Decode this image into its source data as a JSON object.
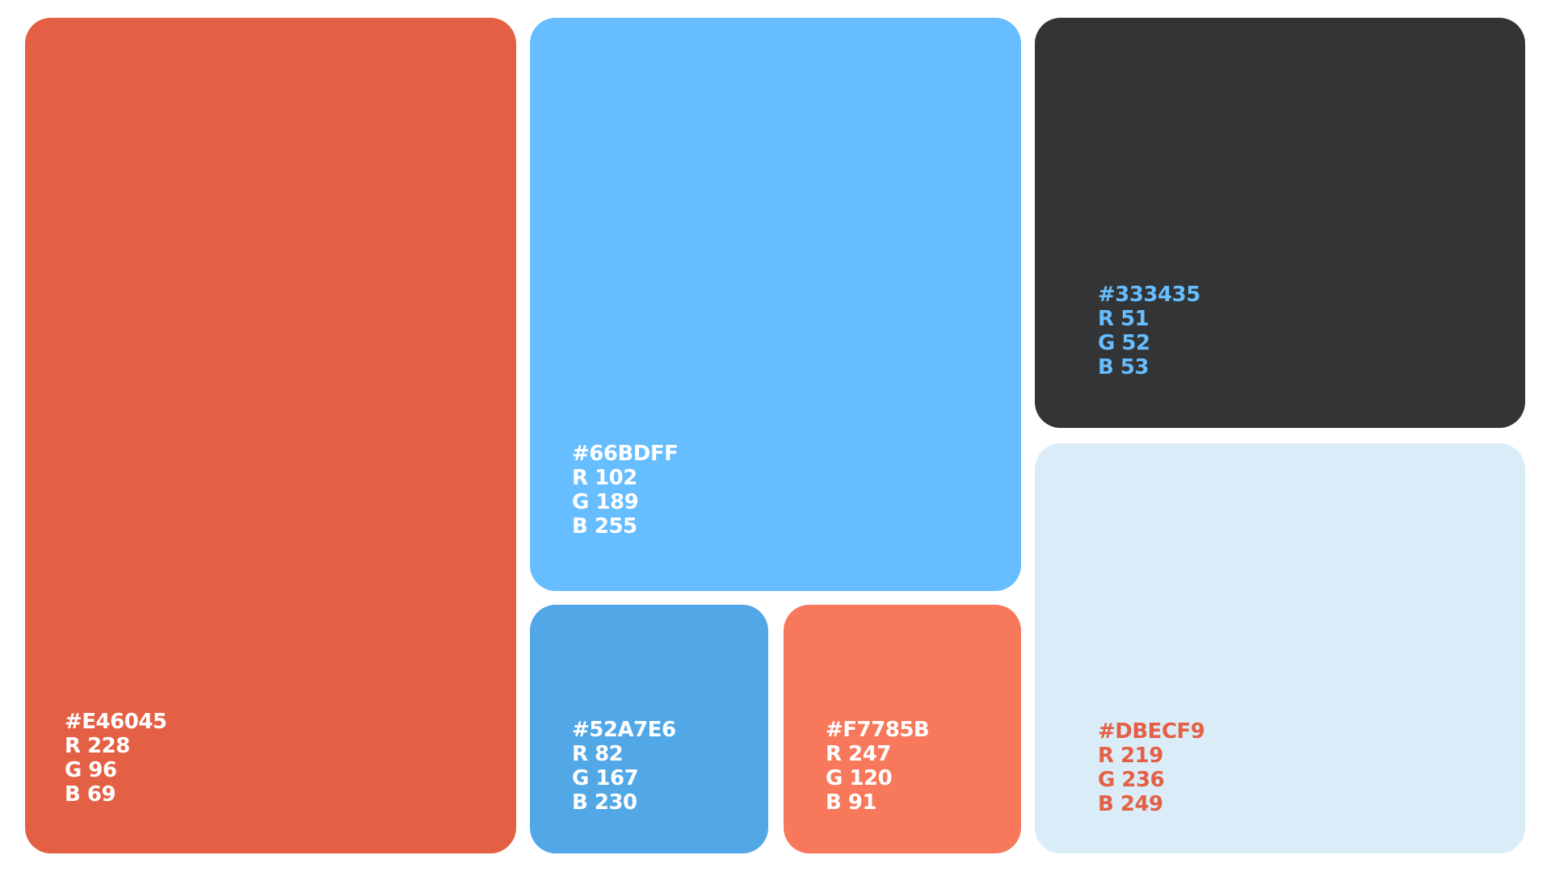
{
  "swatches": [
    {
      "hex": "#E46045",
      "rgb": [
        "R 228",
        "G 96",
        "B 69"
      ],
      "text_color": "#ffffff"
    },
    {
      "hex": "#66BDFF",
      "rgb": [
        "R 102",
        "G 189",
        "B 255"
      ],
      "text_color": "#ffffff"
    },
    {
      "hex": "#52A7E6",
      "rgb": [
        "R 82",
        "G 167",
        "B 230"
      ],
      "text_color": "#ffffff"
    },
    {
      "hex": "#F7785B",
      "rgb": [
        "R 247",
        "G 120",
        "B 91"
      ],
      "text_color": "#ffffff"
    },
    {
      "hex": "#333435",
      "rgb": [
        "R 51",
        "G 52",
        "B 53"
      ],
      "text_color": "#66BDFF"
    },
    {
      "hex": "#DBECF9",
      "rgb": [
        "R 219",
        "G 236",
        "B 249"
      ],
      "text_color": "#E46045"
    }
  ]
}
